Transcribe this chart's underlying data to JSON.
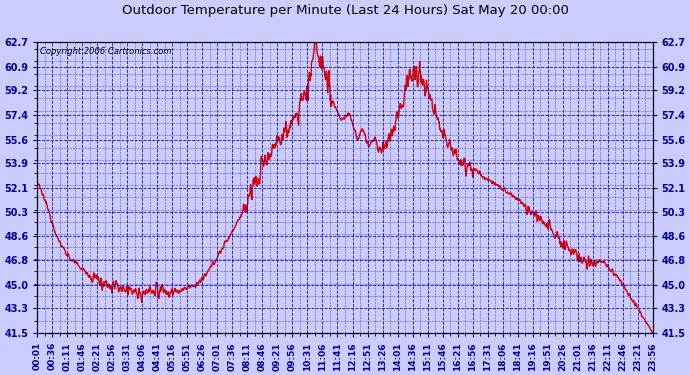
{
  "title": "Outdoor Temperature per Minute (Last 24 Hours) Sat May 20 00:00",
  "copyright": "Copyright 2006 Cartronics.com",
  "background_color": "#ccccff",
  "plot_bg_color": "#ccccff",
  "line_color": "#dd0000",
  "grid_color": "#0000bb",
  "axis_label_color": "#000099",
  "title_color": "#000000",
  "ylim": [
    41.5,
    62.7
  ],
  "yticks": [
    41.5,
    43.3,
    45.0,
    46.8,
    48.6,
    50.3,
    52.1,
    53.9,
    55.6,
    57.4,
    59.2,
    60.9,
    62.7
  ],
  "xtick_labels": [
    "00:01",
    "00:36",
    "01:11",
    "01:46",
    "02:21",
    "02:56",
    "03:31",
    "04:06",
    "04:41",
    "05:16",
    "05:51",
    "06:26",
    "07:01",
    "07:36",
    "08:11",
    "08:46",
    "09:21",
    "09:56",
    "10:31",
    "11:06",
    "11:41",
    "12:16",
    "12:51",
    "13:26",
    "14:01",
    "14:36",
    "15:11",
    "15:46",
    "16:21",
    "16:56",
    "17:31",
    "18:06",
    "18:41",
    "19:16",
    "19:51",
    "20:26",
    "21:01",
    "21:36",
    "22:11",
    "22:46",
    "23:21",
    "23:56"
  ],
  "line_width": 1.0,
  "figwidth": 6.9,
  "figheight": 3.75,
  "dpi": 100,
  "keypoints_x": [
    0,
    20,
    50,
    80,
    120,
    160,
    200,
    220,
    240,
    265,
    280,
    295,
    310,
    330,
    350,
    370,
    390,
    420,
    450,
    480,
    510,
    540,
    570,
    590,
    610,
    625,
    635,
    650,
    670,
    690,
    710,
    730,
    750,
    760,
    775,
    790,
    800,
    815,
    830,
    840,
    855,
    870,
    885,
    900,
    920,
    940,
    960,
    990,
    1020,
    1050,
    1080,
    1110,
    1140,
    1170,
    1200,
    1230,
    1260,
    1290,
    1320,
    1360,
    1400,
    1439
  ],
  "keypoints_y": [
    52.5,
    51.0,
    48.2,
    46.8,
    45.8,
    45.0,
    44.8,
    44.5,
    44.3,
    44.5,
    44.8,
    44.5,
    44.3,
    44.5,
    44.8,
    45.0,
    45.5,
    47.0,
    48.6,
    50.3,
    52.5,
    54.5,
    55.8,
    56.5,
    57.8,
    58.8,
    59.5,
    62.7,
    60.5,
    58.5,
    57.0,
    57.5,
    55.5,
    56.5,
    55.0,
    55.8,
    54.5,
    55.2,
    56.0,
    57.0,
    58.5,
    60.2,
    60.5,
    60.0,
    58.5,
    56.8,
    55.5,
    54.0,
    53.5,
    52.8,
    52.2,
    51.5,
    50.8,
    50.0,
    49.2,
    48.0,
    47.0,
    46.5,
    46.8,
    45.5,
    43.5,
    41.5
  ]
}
